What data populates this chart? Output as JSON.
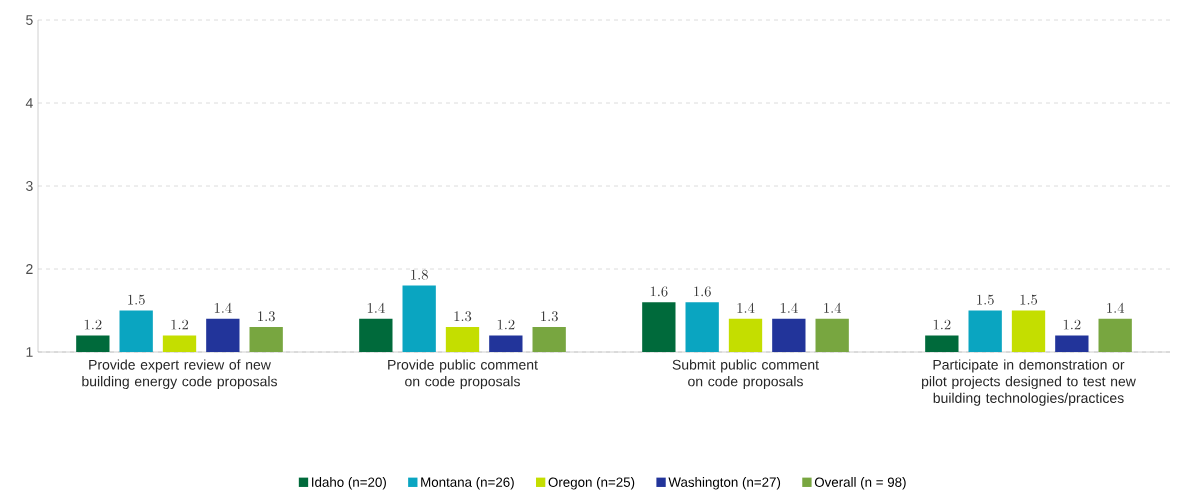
{
  "chart_data": {
    "type": "bar",
    "categories": [
      "Provide expert review of new building energy code proposals",
      "Provide public comment on code proposals",
      "Submit public comment on code proposals",
      "Participate in demonstration or pilot projects designed to test new building technologies/practices"
    ],
    "series": [
      {
        "name": "Idaho (n=20)",
        "color": "#006a3b",
        "values": [
          1.2,
          1.4,
          1.6,
          1.2
        ]
      },
      {
        "name": "Montana (n=26)",
        "color": "#0aa5c1",
        "values": [
          1.5,
          1.8,
          1.6,
          1.5
        ]
      },
      {
        "name": "Oregon (n=25)",
        "color": "#c4de00",
        "values": [
          1.2,
          1.3,
          1.4,
          1.5
        ]
      },
      {
        "name": "Washington (n=27)",
        "color": "#22349a",
        "values": [
          1.4,
          1.2,
          1.4,
          1.2
        ]
      },
      {
        "name": "Overall (n = 98)",
        "color": "#78a640",
        "values": [
          1.3,
          1.3,
          1.4,
          1.4
        ]
      }
    ],
    "ylim": [
      1,
      5
    ],
    "yticks": [
      1,
      2,
      3,
      4,
      5
    ],
    "grid": "y",
    "legend": "bottom",
    "data_labels": true
  }
}
